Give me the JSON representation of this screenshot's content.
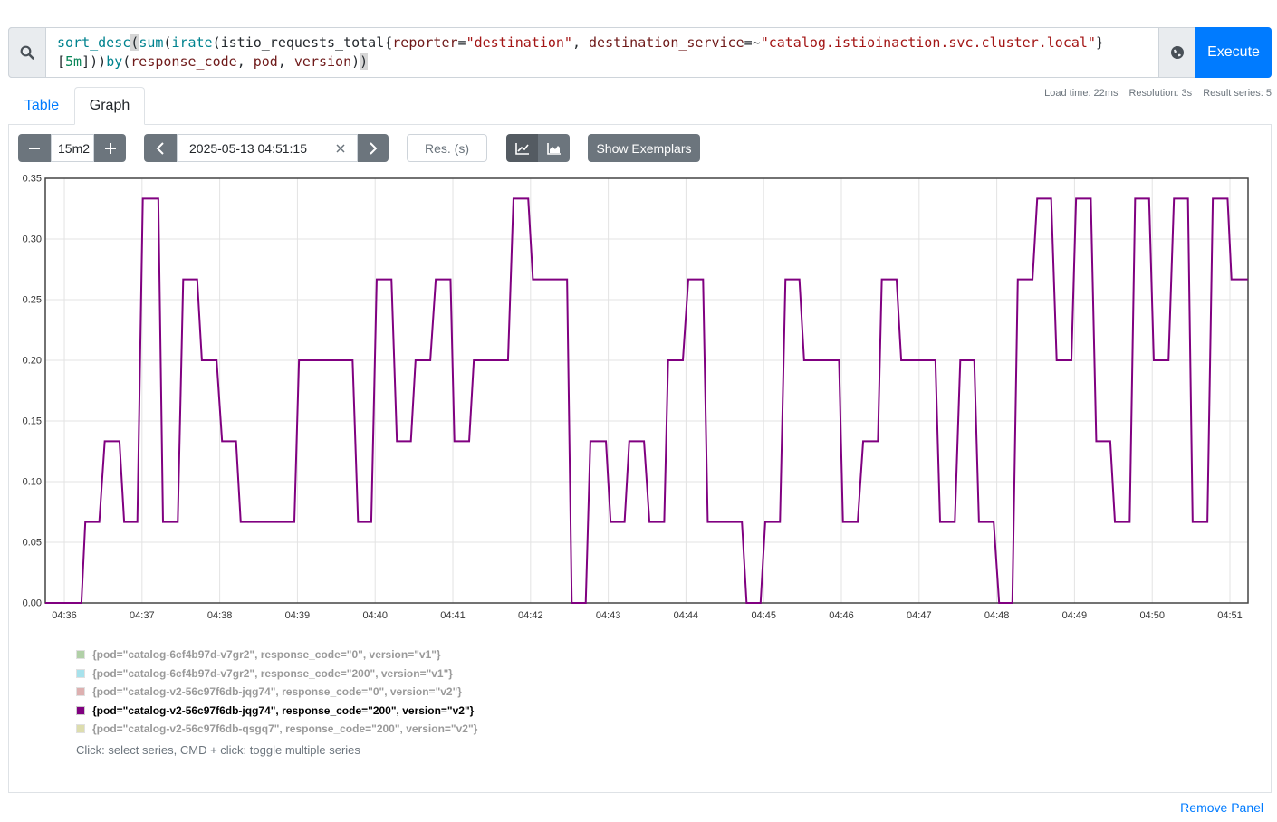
{
  "query": {
    "lines": [
      [
        {
          "text": "sort_desc",
          "kind": "fn"
        },
        {
          "text": "(",
          "kind": "match"
        },
        {
          "text": "sum",
          "kind": "fn"
        },
        {
          "text": "(",
          "kind": "punct"
        },
        {
          "text": "irate",
          "kind": "fn"
        },
        {
          "text": "(",
          "kind": "punct"
        },
        {
          "text": "istio_requests_total",
          "kind": "metric"
        },
        {
          "text": "{",
          "kind": "punct"
        },
        {
          "text": "reporter",
          "kind": "label"
        },
        {
          "text": "=",
          "kind": "punct"
        },
        {
          "text": "\"destination\"",
          "kind": "string"
        },
        {
          "text": ", ",
          "kind": "punct"
        },
        {
          "text": "destination_service",
          "kind": "label"
        },
        {
          "text": "=~",
          "kind": "punct"
        },
        {
          "text": "\"catalog.istioinaction.svc.cluster.local\"",
          "kind": "string"
        },
        {
          "text": "}",
          "kind": "punct"
        }
      ],
      [
        {
          "text": "[",
          "kind": "punct"
        },
        {
          "text": "5m",
          "kind": "duration"
        },
        {
          "text": "]",
          "kind": "punct"
        },
        {
          "text": "))",
          "kind": "punct"
        },
        {
          "text": "by",
          "kind": "fn"
        },
        {
          "text": "(",
          "kind": "punct"
        },
        {
          "text": "response_code",
          "kind": "label"
        },
        {
          "text": ", ",
          "kind": "punct"
        },
        {
          "text": "pod",
          "kind": "label"
        },
        {
          "text": ", ",
          "kind": "punct"
        },
        {
          "text": "version",
          "kind": "label"
        },
        {
          "text": ")",
          "kind": "punct"
        },
        {
          "text": ")",
          "kind": "match"
        }
      ]
    ],
    "execute": "Execute"
  },
  "tabs": [
    "Table",
    "Graph"
  ],
  "stats": [
    "Load time: 22ms",
    "Resolution: 3s",
    "Result series: 5"
  ],
  "controls": {
    "range": "15m2",
    "end_time": "2025-05-13 04:51:15",
    "resolution_placeholder": "Res. (s)",
    "exemplars": "Show Exemplars"
  },
  "chart_data": {
    "type": "line",
    "x": [
      35.755,
      36.22,
      36.27,
      36.45,
      36.52,
      36.71,
      36.77,
      36.94,
      37.01,
      37.21,
      37.27,
      37.46,
      37.53,
      37.71,
      37.77,
      37.96,
      38.03,
      38.21,
      38.27,
      38.96,
      39.02,
      39.71,
      39.78,
      39.95,
      40.02,
      40.21,
      40.28,
      40.46,
      40.52,
      40.71,
      40.78,
      40.97,
      41.02,
      41.21,
      41.27,
      41.71,
      41.78,
      41.97,
      42.03,
      42.47,
      42.53,
      42.71,
      42.77,
      42.97,
      43.03,
      43.21,
      43.27,
      43.46,
      43.53,
      43.72,
      43.77,
      43.96,
      44.03,
      44.22,
      44.28,
      44.72,
      44.78,
      44.96,
      45.02,
      45.21,
      45.28,
      45.46,
      45.52,
      45.97,
      46.02,
      46.21,
      46.28,
      46.47,
      46.52,
      46.71,
      46.77,
      47.21,
      47.27,
      47.46,
      47.53,
      47.71,
      47.77,
      47.96,
      48.03,
      48.2,
      48.27,
      48.46,
      48.52,
      48.7,
      48.77,
      48.96,
      49.02,
      49.21,
      49.28,
      49.46,
      49.52,
      49.71,
      49.78,
      49.96,
      50.02,
      50.21,
      50.28,
      50.46,
      50.52,
      50.71,
      50.78,
      50.97,
      51.02,
      51.23
    ],
    "series": [
      {
        "name": "{pod=\"catalog-6cf4b97d-v7gr2\", response_code=\"0\", version=\"v1\"}",
        "color": "#7eb26d"
      },
      {
        "name": "{pod=\"catalog-6cf4b97d-v7gr2\", response_code=\"200\", version=\"v1\"}",
        "color": "#6ed0e0"
      },
      {
        "name": "{pod=\"catalog-v2-56c97f6db-jqg74\", response_code=\"0\", version=\"v2\"}",
        "color": "#c87c7c"
      },
      {
        "name": "{pod=\"catalog-v2-56c97f6db-jqg74\", response_code=\"200\", version=\"v2\"}",
        "color": "#800080",
        "values": [
          0,
          0,
          0.0667,
          0.0667,
          0.1333,
          0.1333,
          0.0667,
          0.0667,
          0.3333,
          0.3333,
          0.0667,
          0.0667,
          0.2667,
          0.2667,
          0.2,
          0.2,
          0.1333,
          0.1333,
          0.0667,
          0.0667,
          0.2,
          0.2,
          0.0667,
          0.0667,
          0.2667,
          0.2667,
          0.1333,
          0.1333,
          0.2,
          0.2,
          0.2667,
          0.2667,
          0.1333,
          0.1333,
          0.2,
          0.2,
          0.3333,
          0.3333,
          0.2667,
          0.2667,
          0,
          0,
          0.1333,
          0.1333,
          0.0667,
          0.0667,
          0.1333,
          0.1333,
          0.0667,
          0.0667,
          0.2,
          0.2,
          0.2667,
          0.2667,
          0.0667,
          0.0667,
          0,
          0,
          0.0667,
          0.0667,
          0.2667,
          0.2667,
          0.2,
          0.2,
          0.0667,
          0.0667,
          0.1333,
          0.1333,
          0.2667,
          0.2667,
          0.2,
          0.2,
          0.0667,
          0.0667,
          0.2,
          0.2,
          0.0667,
          0.0667,
          0,
          0,
          0.2667,
          0.2667,
          0.3333,
          0.3333,
          0.2,
          0.2,
          0.3333,
          0.3333,
          0.1333,
          0.1333,
          0.0667,
          0.0667,
          0.3333,
          0.3333,
          0.2,
          0.2,
          0.3333,
          0.3333,
          0.0667,
          0.0667,
          0.3333,
          0.3333,
          0.2667,
          0.2667
        ]
      },
      {
        "name": "{pod=\"catalog-v2-56c97f6db-qsgq7\", response_code=\"200\", version=\"v2\"}",
        "color": "#c8c77a"
      }
    ],
    "xlim": [
      35.755,
      51.233
    ],
    "xticks": [
      {
        "value": 36,
        "label": "04:36"
      },
      {
        "value": 37,
        "label": "04:37"
      },
      {
        "value": 38,
        "label": "04:38"
      },
      {
        "value": 39,
        "label": "04:39"
      },
      {
        "value": 40,
        "label": "04:40"
      },
      {
        "value": 41,
        "label": "04:41"
      },
      {
        "value": 42,
        "label": "04:42"
      },
      {
        "value": 43,
        "label": "04:43"
      },
      {
        "value": 44,
        "label": "04:44"
      },
      {
        "value": 45,
        "label": "04:45"
      },
      {
        "value": 46,
        "label": "04:46"
      },
      {
        "value": 47,
        "label": "04:47"
      },
      {
        "value": 48,
        "label": "04:48"
      },
      {
        "value": 49,
        "label": "04:49"
      },
      {
        "value": 50,
        "label": "04:50"
      },
      {
        "value": 51,
        "label": "04:51"
      }
    ],
    "ylim": [
      0,
      0.35
    ],
    "yticks": [
      {
        "value": 0,
        "label": "0.00"
      },
      {
        "value": 0.05,
        "label": "0.05"
      },
      {
        "value": 0.1,
        "label": "0.10"
      },
      {
        "value": 0.15,
        "label": "0.15"
      },
      {
        "value": 0.2,
        "label": "0.20"
      },
      {
        "value": 0.25,
        "label": "0.25"
      },
      {
        "value": 0.3,
        "label": "0.30"
      },
      {
        "value": 0.35,
        "label": "0.35"
      }
    ],
    "grid": true
  },
  "hint": "Click: select series, CMD + click: toggle multiple series",
  "remove_panel": "Remove Panel"
}
